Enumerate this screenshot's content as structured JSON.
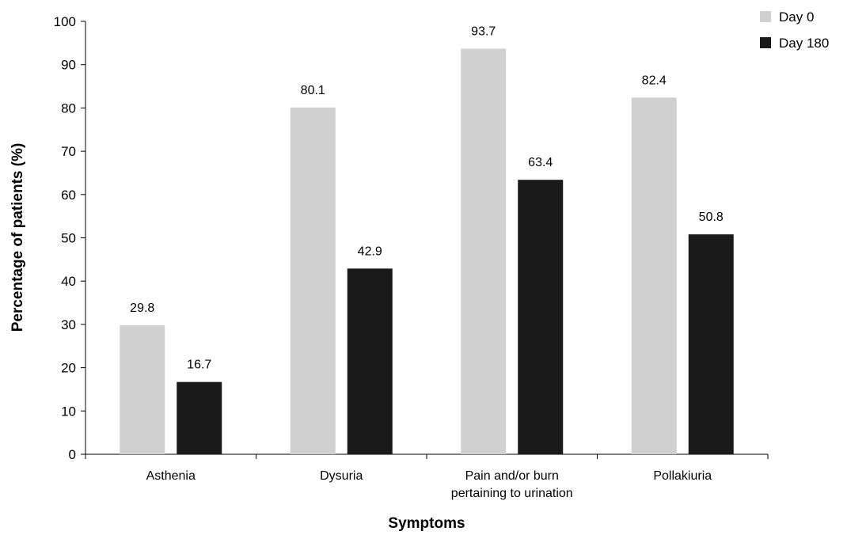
{
  "chart_data": {
    "type": "bar",
    "categories": [
      "Asthenia",
      "Dysuria",
      "Pain and/or burn\npertaining to urination",
      "Pollakiuria"
    ],
    "series": [
      {
        "name": "Day 0",
        "values": [
          29.8,
          80.1,
          93.7,
          82.4
        ],
        "color": "#d0d0d0"
      },
      {
        "name": "Day 180",
        "values": [
          16.7,
          42.9,
          63.4,
          50.8
        ],
        "color": "#1a1a1a"
      }
    ],
    "xlabel": "Symptoms",
    "ylabel": "Percentage of patients (%)",
    "ylim": [
      0,
      100
    ],
    "yticks": [
      0,
      10,
      20,
      30,
      40,
      50,
      60,
      70,
      80,
      90,
      100
    ],
    "grid": false,
    "legend_position": "top-right",
    "data_labels": true
  }
}
